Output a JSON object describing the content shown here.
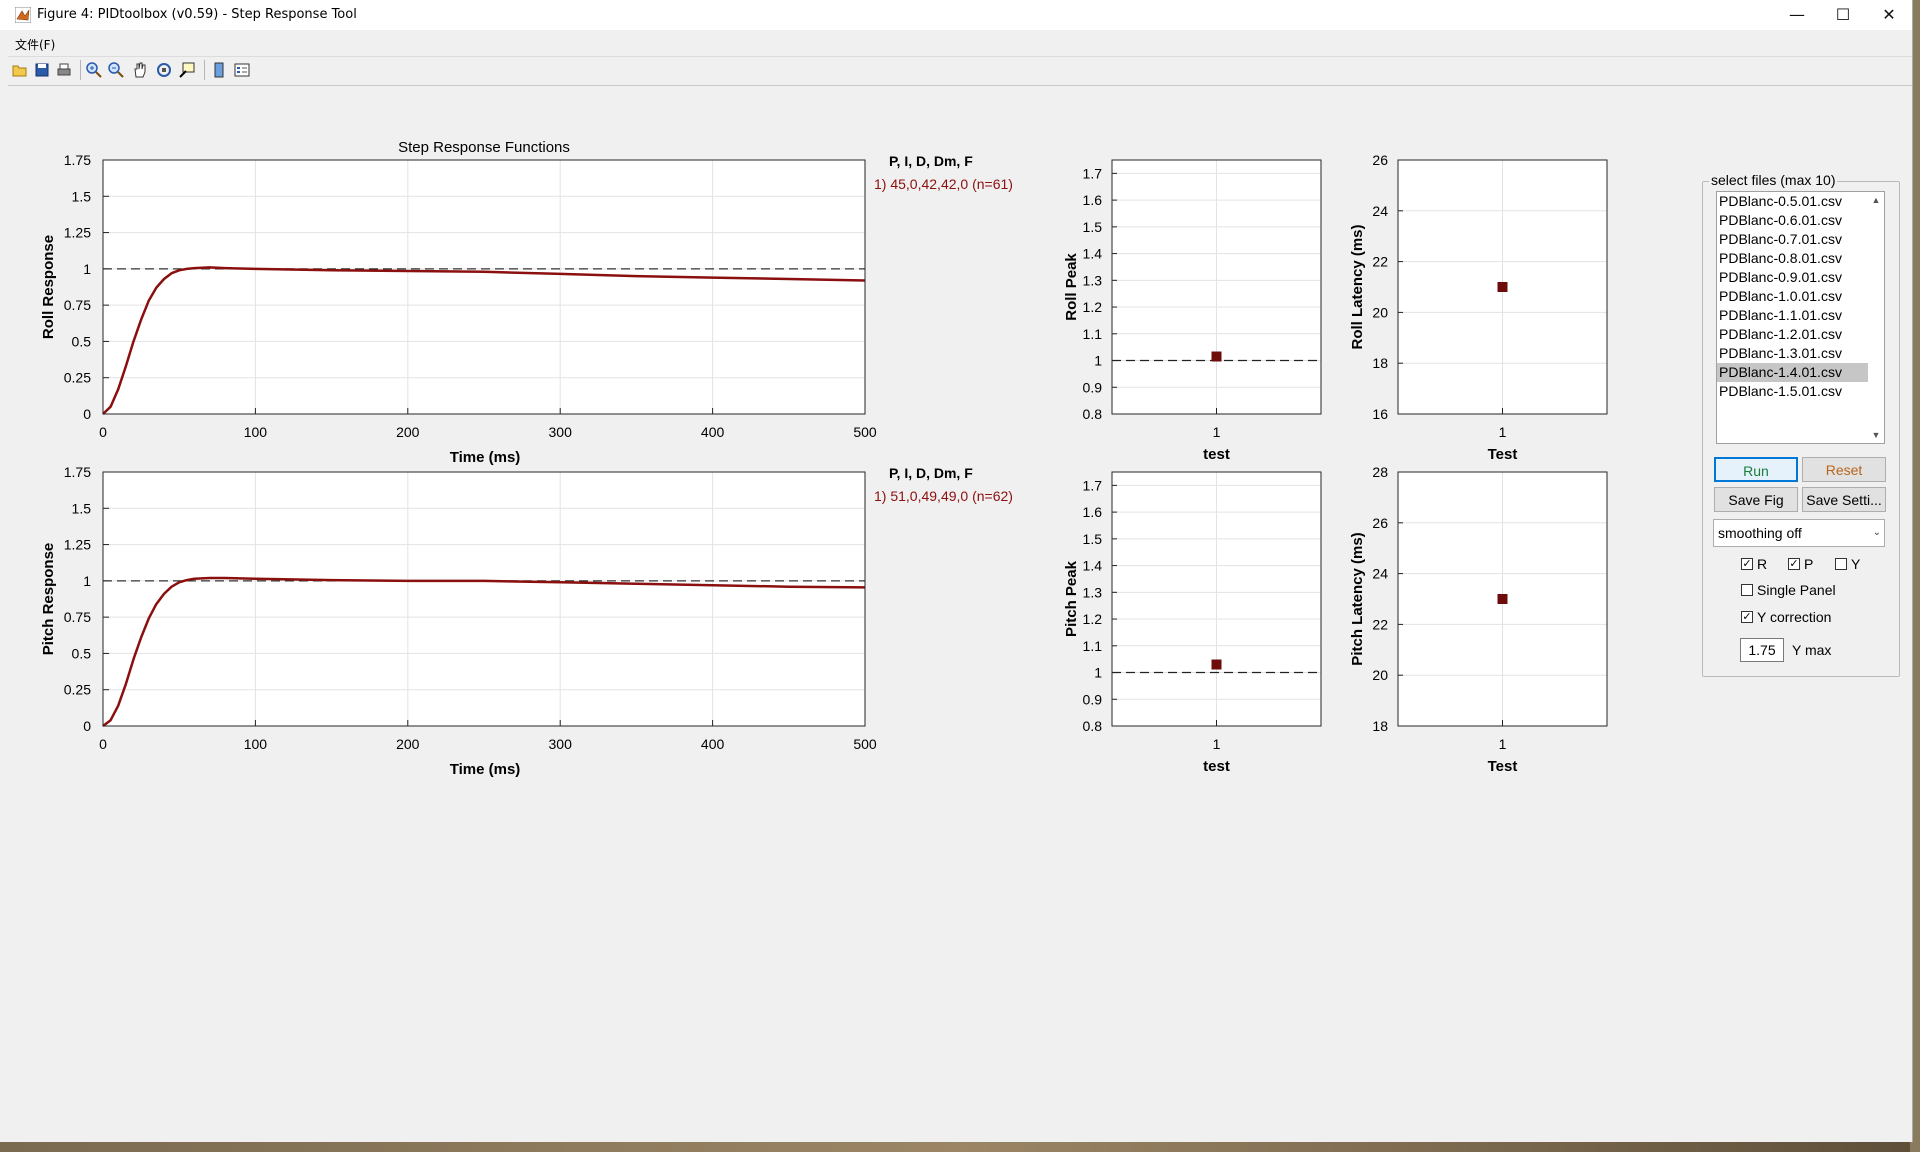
{
  "window": {
    "title": "Figure 4: PIDtoolbox (v0.59) - Step Response Tool",
    "minimize": "—",
    "maximize": "☐",
    "close": "✕"
  },
  "menu": {
    "file": "文件(F)"
  },
  "toolbar": {
    "icons": [
      "open-icon",
      "save-icon",
      "print-icon",
      "zoom-in-icon",
      "zoom-out-icon",
      "pan-icon",
      "rotate-icon",
      "data-cursor-icon",
      "colorbar-icon",
      "legend-icon"
    ]
  },
  "step_chart": {
    "title": "Step Response Functions",
    "xlabel": "Time (ms)",
    "x_ticks": [
      "0",
      "100",
      "200",
      "300",
      "400",
      "500"
    ],
    "y_ticks": [
      "0",
      "0.25",
      "0.5",
      "0.75",
      "1",
      "1.25",
      "1.5",
      "1.75"
    ]
  },
  "roll_legend": {
    "header": "P, I, D, Dm, F",
    "entry": "1) 45,0,42,42,0  (n=61)"
  },
  "pitch_legend": {
    "header": "P, I, D, Dm, F",
    "entry": "1) 51,0,49,49,0  (n=62)"
  },
  "peak_chart": {
    "y_ticks": [
      "0.8",
      "0.9",
      "1",
      "1.1",
      "1.2",
      "1.3",
      "1.4",
      "1.5",
      "1.6",
      "1.7"
    ],
    "x_tick": "1"
  },
  "roll_latency_ticks": [
    "16",
    "18",
    "20",
    "22",
    "24",
    "26"
  ],
  "pitch_latency_ticks": [
    "18",
    "20",
    "22",
    "24",
    "26",
    "28"
  ],
  "chart_data": [
    {
      "type": "line",
      "ylabel": "Roll Response",
      "xlabel": "Time (ms)",
      "title": "Step Response Functions",
      "xlim": [
        0,
        500
      ],
      "ylim": [
        0,
        1.75
      ],
      "grid": true,
      "reference_line": 1,
      "color": "#8b0f0f",
      "series": [
        {
          "name": "1) 45,0,42,42,0  (n=61)",
          "x": [
            0,
            5,
            10,
            15,
            20,
            25,
            30,
            35,
            40,
            45,
            50,
            55,
            60,
            70,
            80,
            100,
            150,
            200,
            250,
            300,
            350,
            400,
            450,
            500
          ],
          "y": [
            0,
            0.05,
            0.17,
            0.33,
            0.5,
            0.65,
            0.78,
            0.87,
            0.93,
            0.97,
            0.99,
            1.0,
            1.005,
            1.01,
            1.005,
            1.0,
            0.99,
            0.985,
            0.98,
            0.965,
            0.95,
            0.94,
            0.93,
            0.92
          ]
        }
      ]
    },
    {
      "type": "line",
      "ylabel": "Pitch Response",
      "xlabel": "Time (ms)",
      "xlim": [
        0,
        500
      ],
      "ylim": [
        0,
        1.75
      ],
      "grid": true,
      "reference_line": 1,
      "color": "#8b0f0f",
      "series": [
        {
          "name": "1) 51,0,49,49,0  (n=62)",
          "x": [
            0,
            5,
            10,
            15,
            20,
            25,
            30,
            35,
            40,
            45,
            50,
            55,
            60,
            70,
            80,
            100,
            150,
            200,
            250,
            300,
            350,
            400,
            450,
            500
          ],
          "y": [
            0,
            0.04,
            0.14,
            0.29,
            0.46,
            0.61,
            0.74,
            0.84,
            0.91,
            0.96,
            0.99,
            1.005,
            1.015,
            1.02,
            1.02,
            1.015,
            1.005,
            1.0,
            1.0,
            0.99,
            0.98,
            0.97,
            0.96,
            0.955
          ]
        }
      ]
    },
    {
      "type": "scatter",
      "ylabel": "Roll Peak",
      "xlabel": "test",
      "ylim": [
        0.8,
        1.75
      ],
      "grid": true,
      "reference_line": 1,
      "categories": [
        "1"
      ],
      "values": [
        1.015
      ]
    },
    {
      "type": "scatter",
      "ylabel": "Roll Latency (ms)",
      "xlabel": "Test",
      "ylim": [
        16,
        26
      ],
      "grid": true,
      "categories": [
        "1"
      ],
      "values": [
        21
      ]
    },
    {
      "type": "scatter",
      "ylabel": "Pitch Peak",
      "xlabel": "test",
      "ylim": [
        0.8,
        1.75
      ],
      "grid": true,
      "reference_line": 1,
      "categories": [
        "1"
      ],
      "values": [
        1.03
      ]
    },
    {
      "type": "scatter",
      "ylabel": "Pitch Latency (ms)",
      "xlabel": "Test",
      "ylim": [
        18,
        28
      ],
      "grid": true,
      "categories": [
        "1"
      ],
      "values": [
        23
      ]
    }
  ],
  "controls": {
    "panel_title": "select files (max 10)",
    "files": [
      "PDBlanc-0.5.01.csv",
      "PDBlanc-0.6.01.csv",
      "PDBlanc-0.7.01.csv",
      "PDBlanc-0.8.01.csv",
      "PDBlanc-0.9.01.csv",
      "PDBlanc-1.0.01.csv",
      "PDBlanc-1.1.01.csv",
      "PDBlanc-1.2.01.csv",
      "PDBlanc-1.3.01.csv",
      "PDBlanc-1.4.01.csv",
      "PDBlanc-1.5.01.csv"
    ],
    "selected_file": "PDBlanc-1.4.01.csv",
    "run": "Run",
    "reset": "Reset",
    "save_fig": "Save Fig",
    "save_settings": "Save Setti...",
    "smoothing": "smoothing off",
    "r_label": "R",
    "p_label": "P",
    "y_label": "Y",
    "r_checked": true,
    "p_checked": true,
    "y_checked": false,
    "single_panel": "Single Panel",
    "single_panel_checked": false,
    "y_correction": "Y correction",
    "y_correction_checked": true,
    "ymax_value": "1.75",
    "ymax_label": "Y max",
    "run_color": "#1a7f3c",
    "reset_color": "#b8651c"
  }
}
